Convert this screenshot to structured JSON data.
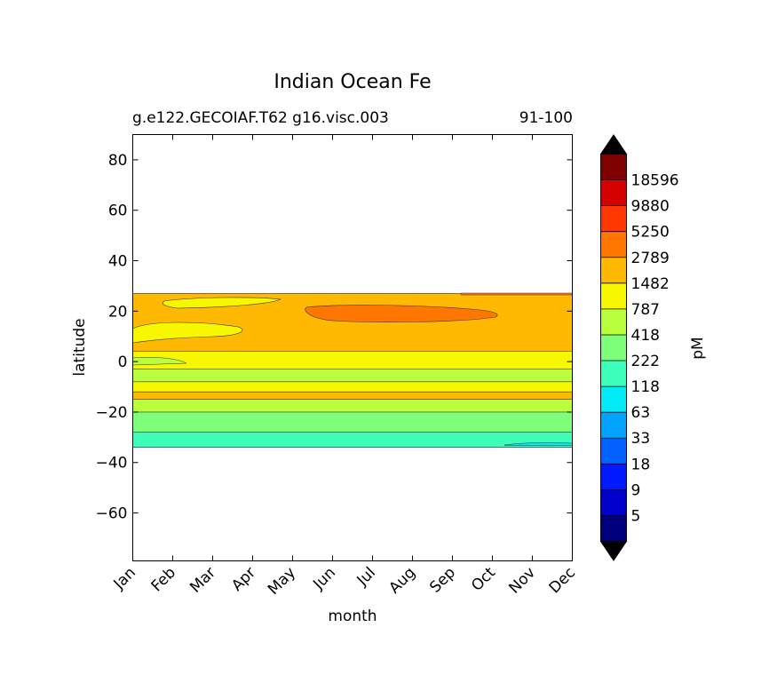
{
  "chart_data": {
    "type": "heatmap",
    "title": "Indian Ocean Fe",
    "subtitle_left": "g.e122.GECOIAF.T62 g16.visc.003",
    "subtitle_right": "91-100",
    "xlabel": "month",
    "ylabel": "latitude",
    "x_ticks": [
      "Jan",
      "Feb",
      "Mar",
      "Apr",
      "May",
      "Jun",
      "Jul",
      "Aug",
      "Sep",
      "Oct",
      "Nov",
      "Dec"
    ],
    "y_ticks": [
      80,
      60,
      40,
      20,
      0,
      -20,
      -40,
      -60
    ],
    "ylim": [
      -79,
      90
    ],
    "colorbar": {
      "label": "pM",
      "levels": [
        "5",
        "9",
        "18",
        "33",
        "63",
        "118",
        "222",
        "418",
        "787",
        "1482",
        "2789",
        "5250",
        "9880",
        "18596"
      ],
      "colors": [
        "#00007f",
        "#0000c8",
        "#0019ff",
        "#0062ff",
        "#00a4ff",
        "#00eaf7",
        "#3effb9",
        "#7dff7a",
        "#b9ff3d",
        "#f7f700",
        "#ffb900",
        "#ff7600",
        "#ff3700",
        "#d70000",
        "#7f0000"
      ],
      "extend_low_color": "#000000",
      "extend_high_color": "#000000"
    },
    "bands": [
      {
        "lat_min": -34,
        "lat_max": -28,
        "level": "118"
      },
      {
        "lat_min": -28,
        "lat_max": -20,
        "level": "222"
      },
      {
        "lat_min": -20,
        "lat_max": -15,
        "level": "418"
      },
      {
        "lat_min": -15,
        "lat_max": -12,
        "level": "1482"
      },
      {
        "lat_min": -12,
        "lat_max": -8,
        "level": "787"
      },
      {
        "lat_min": -8,
        "lat_max": -3,
        "level": "418"
      },
      {
        "lat_min": -3,
        "lat_max": 4,
        "level": "787"
      },
      {
        "lat_min": 4,
        "lat_max": 27,
        "level": "1482"
      }
    ]
  }
}
